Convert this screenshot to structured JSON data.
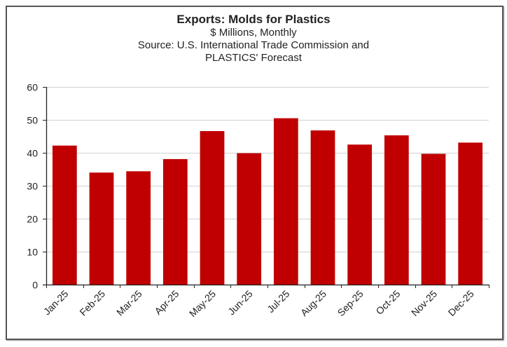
{
  "chart_data": {
    "type": "bar",
    "title": "Exports: Molds for Plastics",
    "subtitle_lines": [
      "$ Millions, Monthly",
      "Source: U.S. International Trade Commission and",
      "PLASTICS' Forecast"
    ],
    "categories": [
      "Jan-25",
      "Feb-25",
      "Mar-25",
      "Apr-25",
      "May-25",
      "Jun-25",
      "Jul-25",
      "Aug-25",
      "Sep-25",
      "Oct-25",
      "Nov-25",
      "Dec-25"
    ],
    "series": [
      {
        "name": "Exports",
        "values": [
          42.2,
          34.0,
          34.4,
          38.1,
          46.6,
          39.9,
          50.5,
          46.8,
          42.5,
          45.3,
          39.7,
          43.1
        ],
        "color": "#C00000"
      }
    ],
    "xlabel": "",
    "ylabel": "",
    "ylim": [
      0,
      60
    ],
    "yticks": [
      "0",
      "10",
      "20",
      "30",
      "40",
      "50",
      "60"
    ],
    "grid": true,
    "legend": "none"
  }
}
